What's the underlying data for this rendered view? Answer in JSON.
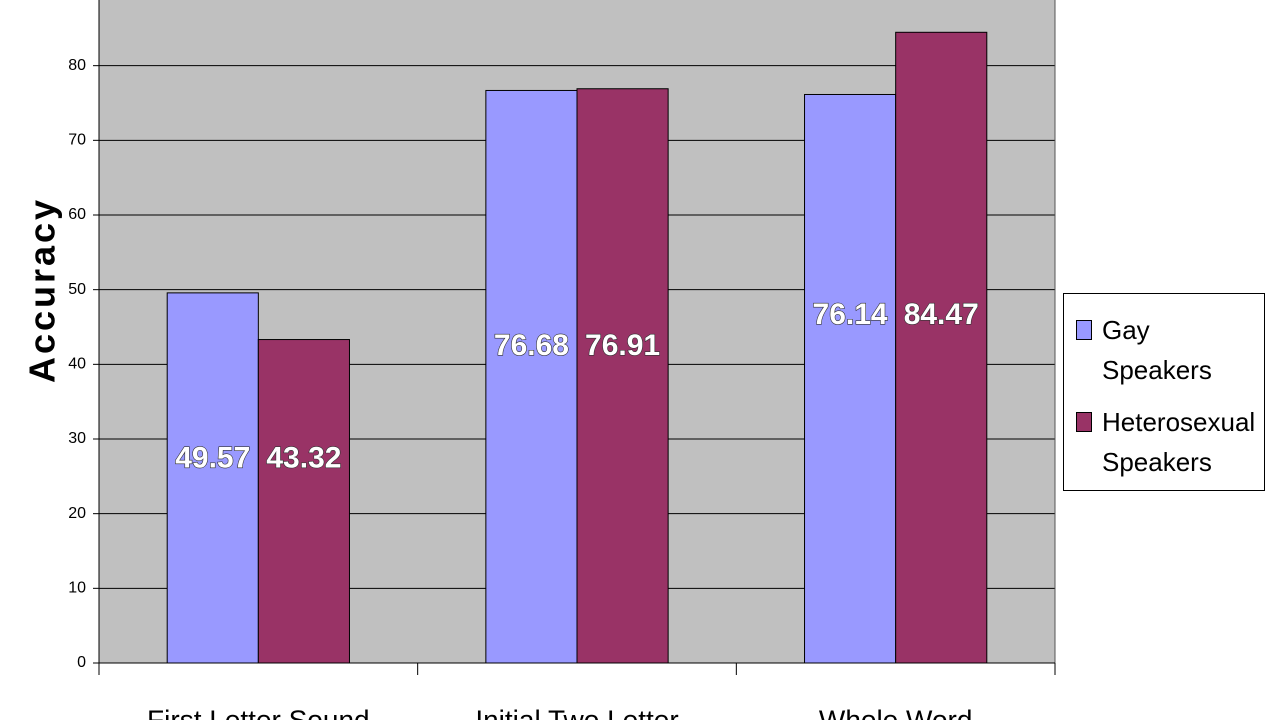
{
  "chart_data": {
    "type": "bar",
    "y_label": "Accuracy",
    "categories": [
      "First Letter Sound",
      "Initial Two Letter",
      "Whole Word"
    ],
    "series": [
      {
        "name": "Gay Speakers",
        "color": "#9999ff",
        "values": [
          49.57,
          76.68,
          76.14
        ]
      },
      {
        "name": "Heterosexual Speakers",
        "color": "#993366",
        "values": [
          43.32,
          76.91,
          84.47
        ]
      }
    ],
    "ylim": [
      0,
      90
    ],
    "yticks": [
      0,
      10,
      20,
      30,
      40,
      50,
      60,
      70,
      80,
      90
    ],
    "grid": true,
    "plot_background": "#c0c0c0",
    "legend": "right"
  }
}
